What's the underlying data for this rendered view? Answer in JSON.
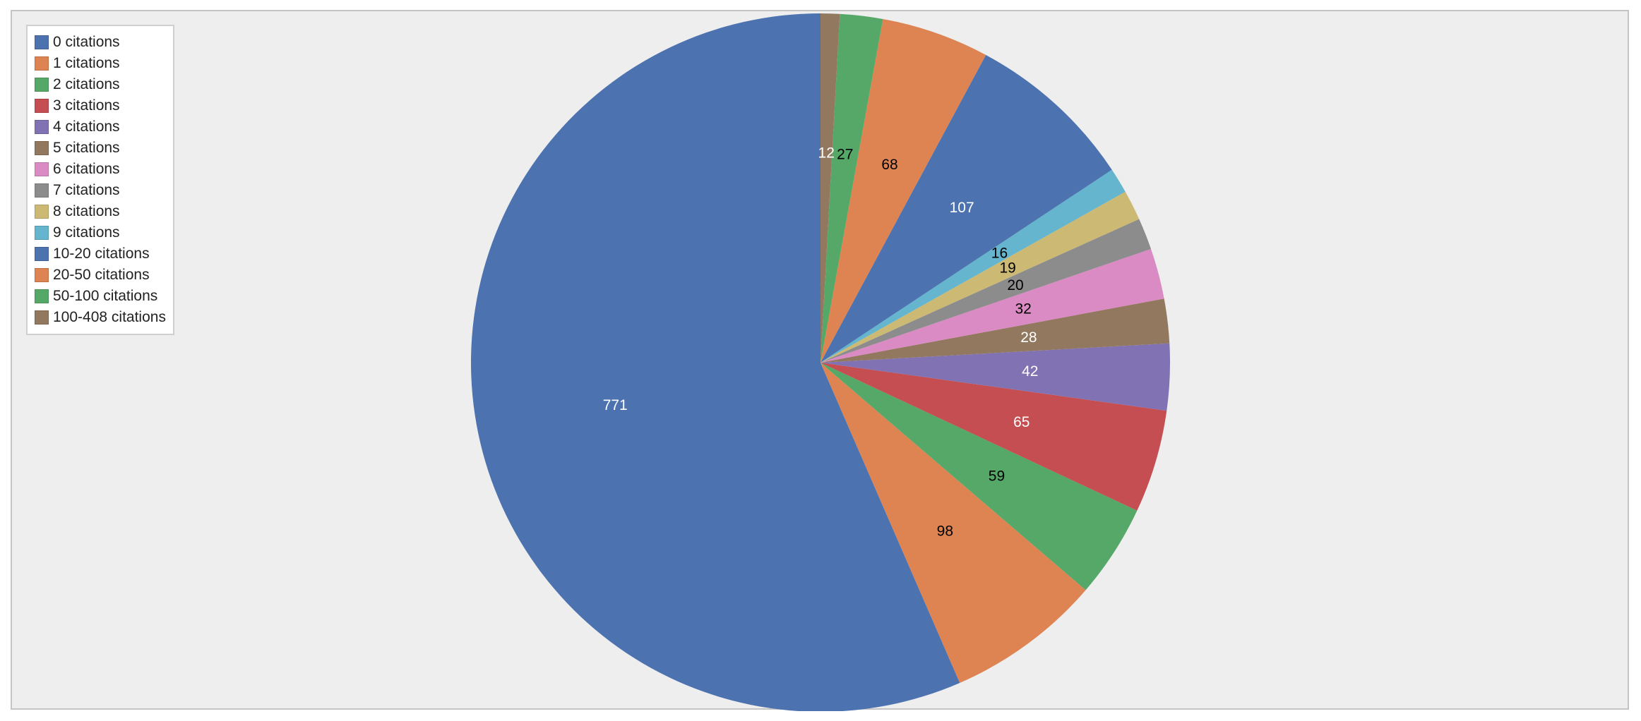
{
  "chart_data": {
    "type": "pie",
    "slices": [
      {
        "label": "0 citations",
        "value": 771,
        "color": "#4c72b0",
        "label_color": "#ffffff"
      },
      {
        "label": "1 citations",
        "value": 98,
        "color": "#dd8452",
        "label_color": "#000000"
      },
      {
        "label": "2 citations",
        "value": 59,
        "color": "#55a868",
        "label_color": "#000000"
      },
      {
        "label": "3 citations",
        "value": 65,
        "color": "#c44e52",
        "label_color": "#ffffff"
      },
      {
        "label": "4 citations",
        "value": 42,
        "color": "#8172b3",
        "label_color": "#ffffff"
      },
      {
        "label": "5 citations",
        "value": 28,
        "color": "#937860",
        "label_color": "#ffffff"
      },
      {
        "label": "6 citations",
        "value": 32,
        "color": "#da8bc3",
        "label_color": "#000000"
      },
      {
        "label": "7 citations",
        "value": 20,
        "color": "#8c8c8c",
        "label_color": "#000000"
      },
      {
        "label": "8 citations",
        "value": 19,
        "color": "#ccb974",
        "label_color": "#000000"
      },
      {
        "label": "9 citations",
        "value": 16,
        "color": "#64b5cd",
        "label_color": "#000000"
      },
      {
        "label": "10-20 citations",
        "value": 107,
        "color": "#4c72b0",
        "label_color": "#ffffff"
      },
      {
        "label": "20-50 citations",
        "value": 68,
        "color": "#dd8452",
        "label_color": "#000000"
      },
      {
        "label": "50-100 citations",
        "value": 27,
        "color": "#55a868",
        "label_color": "#000000"
      },
      {
        "label": "100-408 citations",
        "value": 12,
        "color": "#937860",
        "label_color": "#ffffff"
      }
    ],
    "start": "12 o'clock",
    "direction": "counterclockwise",
    "legend": "top-left",
    "title": ""
  }
}
